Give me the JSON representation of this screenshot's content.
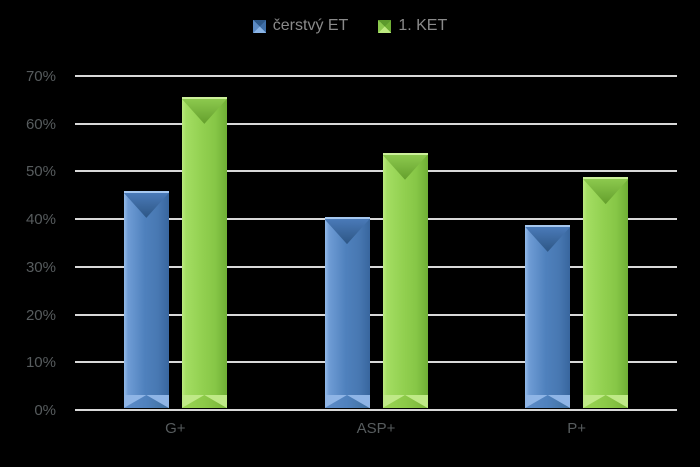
{
  "chart_data": {
    "type": "bar",
    "title": "",
    "xlabel": "",
    "ylabel": "",
    "categories": [
      "G+",
      "ASP+",
      "P+"
    ],
    "series": [
      {
        "name": "čerstvý ET",
        "color": "#4f81bd",
        "values": [
          45.5,
          40.0,
          38.4
        ]
      },
      {
        "name": "1. KET",
        "color": "#92d050",
        "values": [
          65.2,
          53.5,
          48.4
        ]
      }
    ],
    "ylim": [
      0,
      70
    ],
    "yticks": [
      {
        "value": 0,
        "label": "0%"
      },
      {
        "value": 10,
        "label": "10%"
      },
      {
        "value": 20,
        "label": "20%"
      },
      {
        "value": 30,
        "label": "30%"
      },
      {
        "value": 40,
        "label": "40%"
      },
      {
        "value": 50,
        "label": "50%"
      },
      {
        "value": 60,
        "label": "60%"
      },
      {
        "value": 70,
        "label": "70%"
      }
    ],
    "grid": true,
    "legend_position": "top-center",
    "background_color": "#000000",
    "gridline_color": "#d9d9d9",
    "tick_label_color": "#575c5e",
    "legend_label_color": "#8a8a8a",
    "bar_style": "3d-beveled"
  }
}
